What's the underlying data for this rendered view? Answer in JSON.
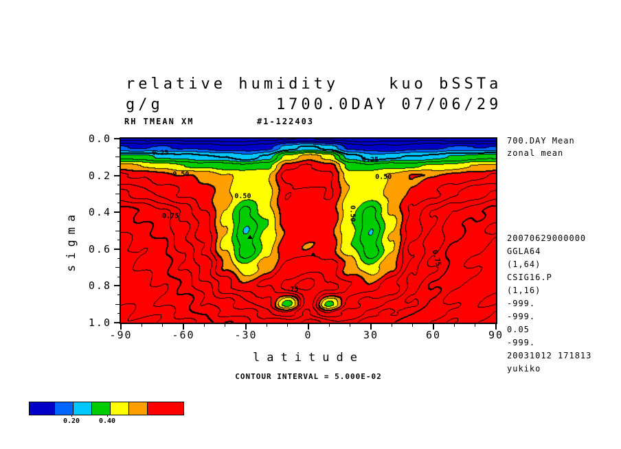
{
  "header": {
    "title_line1": "relative humidity    kuo bSSTa",
    "title_line2": "g/g         1700.0DAY 07/06/29",
    "left_tag": "RH TMEAN XM",
    "run_tag": "#1-122403"
  },
  "side_notes": {
    "top": [
      "700.DAY Mean",
      "zonal mean"
    ],
    "bottom": [
      "20070629000000",
      "GGLA64",
      "(1,64)",
      "CSIG16.P",
      "(1,16)",
      "-999.",
      "-999.",
      "0.05",
      "-999.",
      "20031012 171813",
      "yukiko"
    ]
  },
  "footer": {
    "contour_interval_text": "CONTOUR INTERVAL = 5.000E-02"
  },
  "colorbar": {
    "colors": [
      "#0000C8",
      "#0064FF",
      "#00C8FF",
      "#00CE00",
      "#FFFF00",
      "#FFA000",
      "#FF0000"
    ],
    "labels": [
      {
        "text": "0.20",
        "boundary": 1
      },
      {
        "text": "0.40",
        "boundary": 3
      }
    ]
  },
  "chart_data": {
    "type": "contour",
    "title": "relative humidity kuo bSSTa",
    "subtitle": "g/g 1700.0DAY 07/06/29",
    "xlabel": "latitude",
    "ylabel": "sigma",
    "xlim": [
      -90,
      90
    ],
    "ylim": [
      0,
      1
    ],
    "x_ticks": [
      -90,
      -60,
      -30,
      0,
      30,
      60,
      90
    ],
    "x_minor_step": 10,
    "y_ticks": [
      "0.0",
      "0.2",
      "0.4",
      "0.6",
      "0.8",
      "1.0"
    ],
    "y_minor_step": 0.05,
    "contour_interval": 0.05,
    "fill_levels": [
      0.15,
      0.2,
      0.3,
      0.4,
      0.45,
      0.5
    ],
    "fill_colors": [
      "#0000C8",
      "#0064FF",
      "#00C8FF",
      "#00CE00",
      "#FFFF00",
      "#FFA000",
      "#FF0000"
    ],
    "grid": {
      "lat": [
        -90,
        -80,
        -70,
        -60,
        -50,
        -40,
        -30,
        -20,
        -10,
        0,
        10,
        20,
        30,
        40,
        50,
        60,
        70,
        80,
        90
      ],
      "sigma": [
        0.0,
        0.05,
        0.1,
        0.15,
        0.2,
        0.3,
        0.4,
        0.5,
        0.6,
        0.7,
        0.8,
        0.9,
        0.95,
        1.0
      ],
      "values": [
        [
          0.03,
          0.03,
          0.03,
          0.03,
          0.03,
          0.03,
          0.03,
          0.03,
          0.04,
          0.05,
          0.04,
          0.03,
          0.03,
          0.03,
          0.03,
          0.03,
          0.03,
          0.03,
          0.03
        ],
        [
          0.16,
          0.15,
          0.15,
          0.14,
          0.13,
          0.12,
          0.12,
          0.14,
          0.22,
          0.27,
          0.22,
          0.14,
          0.12,
          0.12,
          0.13,
          0.14,
          0.15,
          0.15,
          0.16
        ],
        [
          0.33,
          0.32,
          0.3,
          0.28,
          0.26,
          0.24,
          0.22,
          0.27,
          0.43,
          0.48,
          0.43,
          0.27,
          0.22,
          0.24,
          0.26,
          0.28,
          0.3,
          0.32,
          0.33
        ],
        [
          0.46,
          0.45,
          0.43,
          0.41,
          0.39,
          0.38,
          0.36,
          0.38,
          0.53,
          0.56,
          0.53,
          0.38,
          0.36,
          0.38,
          0.39,
          0.41,
          0.43,
          0.45,
          0.46
        ],
        [
          0.56,
          0.54,
          0.51,
          0.5,
          0.49,
          0.46,
          0.43,
          0.44,
          0.56,
          0.58,
          0.56,
          0.44,
          0.43,
          0.46,
          0.49,
          0.5,
          0.51,
          0.54,
          0.56
        ],
        [
          0.66,
          0.63,
          0.59,
          0.55,
          0.52,
          0.46,
          0.41,
          0.44,
          0.55,
          0.53,
          0.55,
          0.44,
          0.41,
          0.46,
          0.52,
          0.55,
          0.59,
          0.63,
          0.66
        ],
        [
          0.78,
          0.74,
          0.71,
          0.64,
          0.56,
          0.45,
          0.34,
          0.42,
          0.54,
          0.52,
          0.54,
          0.42,
          0.34,
          0.45,
          0.56,
          0.64,
          0.71,
          0.74,
          0.78
        ],
        [
          0.8,
          0.77,
          0.74,
          0.66,
          0.58,
          0.44,
          0.3,
          0.4,
          0.52,
          0.54,
          0.52,
          0.4,
          0.3,
          0.44,
          0.58,
          0.66,
          0.74,
          0.77,
          0.8
        ],
        [
          0.82,
          0.79,
          0.76,
          0.68,
          0.6,
          0.45,
          0.32,
          0.42,
          0.53,
          0.5,
          0.53,
          0.42,
          0.32,
          0.45,
          0.6,
          0.68,
          0.76,
          0.79,
          0.82
        ],
        [
          0.83,
          0.8,
          0.77,
          0.71,
          0.63,
          0.5,
          0.4,
          0.48,
          0.57,
          0.6,
          0.57,
          0.48,
          0.4,
          0.5,
          0.63,
          0.71,
          0.77,
          0.8,
          0.83
        ],
        [
          0.84,
          0.82,
          0.79,
          0.74,
          0.67,
          0.58,
          0.52,
          0.55,
          0.62,
          0.66,
          0.62,
          0.55,
          0.52,
          0.58,
          0.67,
          0.74,
          0.79,
          0.82,
          0.84
        ],
        [
          0.85,
          0.83,
          0.81,
          0.77,
          0.71,
          0.66,
          0.62,
          0.56,
          0.39,
          0.62,
          0.39,
          0.56,
          0.62,
          0.66,
          0.71,
          0.77,
          0.81,
          0.83,
          0.85
        ],
        [
          0.86,
          0.84,
          0.83,
          0.79,
          0.74,
          0.7,
          0.67,
          0.62,
          0.55,
          0.67,
          0.55,
          0.62,
          0.67,
          0.7,
          0.74,
          0.79,
          0.83,
          0.84,
          0.86
        ],
        [
          0.87,
          0.86,
          0.84,
          0.81,
          0.78,
          0.75,
          0.72,
          0.68,
          0.66,
          0.72,
          0.66,
          0.68,
          0.72,
          0.75,
          0.78,
          0.81,
          0.84,
          0.86,
          0.87
        ]
      ]
    },
    "contour_labels": [
      {
        "text": "0.25",
        "x": 0.105,
        "y": 0.08,
        "rot": 0
      },
      {
        "text": "0.25",
        "x": 0.665,
        "y": 0.115,
        "rot": 0
      },
      {
        "text": "0.50",
        "x": 0.16,
        "y": 0.195,
        "rot": 0
      },
      {
        "text": "0.50",
        "x": 0.7,
        "y": 0.21,
        "rot": 0
      },
      {
        "text": "0.50",
        "x": 0.325,
        "y": 0.315,
        "rot": 0
      },
      {
        "text": "0.75",
        "x": 0.132,
        "y": 0.42,
        "rot": 0
      },
      {
        "text": "0.50",
        "x": 0.618,
        "y": 0.408,
        "rot": 90
      },
      {
        "text": "0.75",
        "x": 0.84,
        "y": 0.65,
        "rot": 75
      },
      {
        "text": "75",
        "x": 0.462,
        "y": 0.82,
        "rot": 0
      }
    ],
    "min_markers": [
      {
        "x": 0.345,
        "y": 0.535
      },
      {
        "x": 0.512,
        "y": 0.625
      }
    ]
  }
}
